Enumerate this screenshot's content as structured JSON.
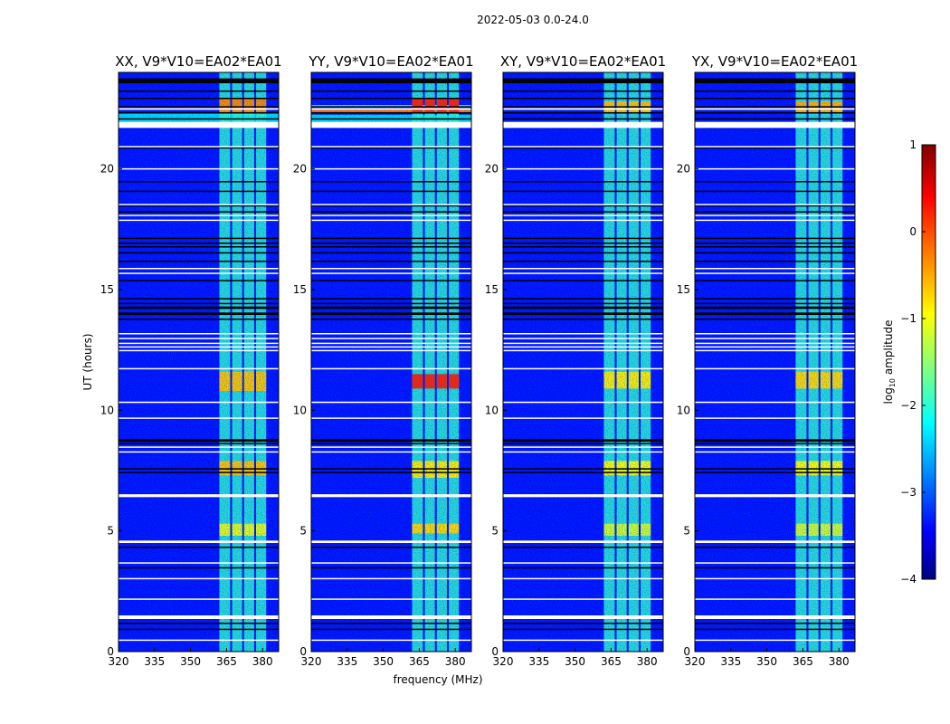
{
  "chart_data": {
    "type": "heatmap",
    "title": "2022-05-03 0.0-24.0",
    "xlabel": "frequency (MHz)",
    "ylabel": "UT (hours)",
    "xlim": [
      320,
      386.7
    ],
    "ylim": [
      0,
      24
    ],
    "xticks": [
      320,
      335,
      350,
      365,
      380
    ],
    "yticks": [
      0,
      5,
      10,
      15,
      20
    ],
    "colormap": "jet",
    "colorbar": {
      "label": "log10 amplitude",
      "label_main": "log",
      "label_sub": "10",
      "label_rest": " amplitude",
      "range": [
        -4,
        1
      ],
      "ticks": [
        "1",
        "0",
        "−1",
        "−2",
        "−3",
        "−4"
      ],
      "tick_values": [
        1,
        0,
        -1,
        -2,
        -3,
        -4
      ]
    },
    "background_level": -3.3,
    "band_level": -1.9,
    "bands_mhz": [
      [
        362,
        366.5
      ],
      [
        367.3,
        371.5
      ],
      [
        372.3,
        376.5
      ],
      [
        377.3,
        381.5
      ]
    ],
    "flagged_white_hours": [
      [
        22.45,
        22.52
      ],
      [
        21.7,
        21.95
      ],
      [
        20.9,
        20.95
      ],
      [
        19.98,
        20.03
      ],
      [
        18.5,
        18.55
      ],
      [
        18.05,
        18.1
      ],
      [
        17.85,
        17.9
      ],
      [
        15.85,
        15.9
      ],
      [
        15.65,
        15.7
      ],
      [
        13.15,
        13.2
      ],
      [
        12.95,
        13.0
      ],
      [
        12.75,
        12.8
      ],
      [
        12.6,
        12.65
      ],
      [
        12.45,
        12.5
      ],
      [
        11.7,
        11.75
      ],
      [
        10.3,
        10.36
      ],
      [
        9.65,
        9.7
      ],
      [
        8.45,
        8.5
      ],
      [
        8.25,
        8.3
      ],
      [
        6.4,
        6.52
      ],
      [
        4.5,
        4.6
      ],
      [
        3.66,
        3.7
      ],
      [
        3.0,
        3.05
      ],
      [
        2.15,
        2.2
      ],
      [
        1.35,
        1.5
      ],
      [
        0.45,
        0.5
      ]
    ],
    "flagged_black_hours": [
      [
        23.55,
        23.75
      ],
      [
        23.2,
        23.25
      ],
      [
        22.9,
        22.95
      ],
      [
        22.55,
        22.6
      ],
      [
        22.3,
        22.35
      ],
      [
        22.05,
        22.1
      ],
      [
        20.85,
        20.9
      ],
      [
        19.45,
        19.5
      ],
      [
        19.05,
        19.1
      ],
      [
        18.45,
        18.5
      ],
      [
        18.2,
        18.25
      ],
      [
        17.1,
        17.15
      ],
      [
        16.9,
        16.95
      ],
      [
        16.75,
        16.8
      ],
      [
        16.5,
        16.55
      ],
      [
        16.15,
        16.2
      ],
      [
        15.85,
        15.9
      ],
      [
        15.35,
        15.4
      ],
      [
        14.6,
        14.65
      ],
      [
        14.4,
        14.45
      ],
      [
        14.2,
        14.3
      ],
      [
        13.95,
        14.05
      ],
      [
        13.75,
        13.8
      ],
      [
        8.7,
        8.8
      ],
      [
        8.6,
        8.65
      ],
      [
        7.55,
        7.6
      ],
      [
        7.4,
        7.45
      ],
      [
        4.3,
        4.35
      ],
      [
        3.45,
        3.5
      ],
      [
        1.15,
        1.2
      ],
      [
        0.9,
        0.95
      ]
    ],
    "panels": [
      {
        "title": "XX, V9*V10=EA02*EA01",
        "strips": [
          {
            "hours": [
              21.95,
              22.3
            ],
            "level": -2.3
          }
        ],
        "bright": [
          {
            "hours": [
              22.35,
              22.9
            ],
            "level": -0.3
          },
          {
            "hours": [
              10.8,
              11.6
            ],
            "level": -0.6
          },
          {
            "hours": [
              7.3,
              7.9
            ],
            "level": -0.6
          },
          {
            "hours": [
              4.8,
              5.3
            ],
            "level": -1.0
          }
        ]
      },
      {
        "title": "YY, V9*V10=EA02*EA01",
        "strips": [
          {
            "hours": [
              22.35,
              22.5
            ],
            "level": -0.2
          },
          {
            "hours": [
              21.95,
              22.25
            ],
            "level": -2.3
          },
          {
            "hours": [
              22.55,
              22.65
            ],
            "level": -2.0
          }
        ],
        "bright": [
          {
            "hours": [
              22.35,
              22.9
            ],
            "level": 0.2
          },
          {
            "hours": [
              10.9,
              11.5
            ],
            "level": 0.2
          },
          {
            "hours": [
              7.2,
              7.9
            ],
            "level": -0.8
          },
          {
            "hours": [
              4.9,
              5.3
            ],
            "level": -0.7
          }
        ]
      },
      {
        "title": "XY, V9*V10=EA02*EA01",
        "strips": [],
        "bright": [
          {
            "hours": [
              22.35,
              22.8
            ],
            "level": -0.6
          },
          {
            "hours": [
              10.9,
              11.6
            ],
            "level": -0.8
          },
          {
            "hours": [
              7.3,
              7.9
            ],
            "level": -0.9
          },
          {
            "hours": [
              4.8,
              5.3
            ],
            "level": -1.1
          }
        ]
      },
      {
        "title": "YX, V9*V10=EA02*EA01",
        "strips": [],
        "bright": [
          {
            "hours": [
              22.35,
              22.8
            ],
            "level": -0.5
          },
          {
            "hours": [
              10.9,
              11.6
            ],
            "level": -0.7
          },
          {
            "hours": [
              7.3,
              7.9
            ],
            "level": -0.9
          },
          {
            "hours": [
              4.8,
              5.3
            ],
            "level": -1.1
          }
        ]
      }
    ]
  }
}
